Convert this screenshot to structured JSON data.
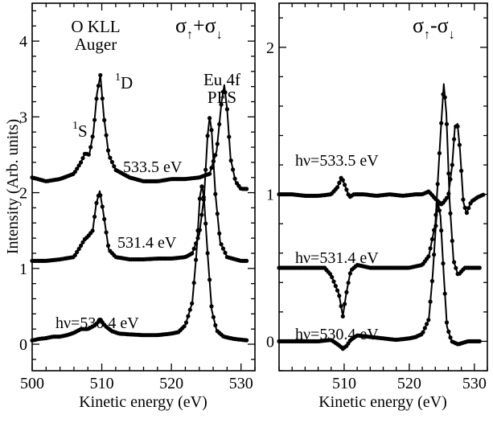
{
  "chart_data": [
    {
      "type": "line",
      "title": "σ↑+σ↓",
      "xlabel": "Kinetic energy (eV)",
      "ylabel": "Intensity (Arb. units)",
      "xlim": [
        500,
        532
      ],
      "ylim": [
        -0.35,
        4.5
      ],
      "xticks": [
        "500",
        "510",
        "520",
        "530"
      ],
      "xtick_values": [
        500,
        510,
        520,
        530
      ],
      "yticks": [
        "0",
        "1",
        "2",
        "3",
        "4"
      ],
      "ytick_values": [
        0,
        1,
        2,
        3,
        4
      ],
      "series": [
        {
          "name": "hν=530.4 eV",
          "label": "hν=530.4 eV",
          "x": [
            500,
            501,
            502,
            503,
            504,
            505,
            506,
            507,
            508,
            509,
            509.8,
            510.5,
            511.5,
            512.5,
            514,
            516,
            518,
            520,
            521,
            522,
            523,
            523.6,
            524.1,
            524.4,
            524.7,
            525.2,
            525.8,
            526.5,
            527.5,
            529,
            531
          ],
          "y": [
            0.05,
            0.07,
            0.08,
            0.1,
            0.1,
            0.12,
            0.15,
            0.2,
            0.2,
            0.25,
            0.32,
            0.24,
            0.17,
            0.14,
            0.13,
            0.12,
            0.12,
            0.14,
            0.16,
            0.25,
            0.55,
            1.2,
            1.95,
            2.1,
            1.9,
            1.2,
            0.45,
            0.18,
            0.1,
            0.07,
            0.05
          ]
        },
        {
          "name": "531.4 eV",
          "label": "531.4 eV",
          "x": [
            500,
            502,
            504,
            506,
            507,
            507.5,
            508,
            508.7,
            509.2,
            509.7,
            510.2,
            511,
            512,
            514,
            516,
            518,
            520,
            522,
            523,
            524,
            524.7,
            525.2,
            525.5,
            525.8,
            526.3,
            527,
            528,
            530,
            531
          ],
          "y": [
            1.1,
            1.1,
            1.12,
            1.15,
            1.3,
            1.38,
            1.42,
            1.5,
            1.85,
            2.02,
            1.75,
            1.25,
            1.15,
            1.12,
            1.12,
            1.13,
            1.13,
            1.15,
            1.2,
            1.45,
            1.95,
            2.75,
            3.0,
            2.8,
            2.0,
            1.35,
            1.15,
            1.1,
            1.1
          ]
        },
        {
          "name": "533.5 eV",
          "label": "533.5 eV",
          "x": [
            500,
            502,
            504,
            506,
            507,
            507.6,
            508.2,
            508.8,
            509.3,
            509.8,
            510.3,
            511,
            512,
            514,
            516,
            518,
            520,
            522,
            524,
            525.5,
            526.5,
            527.2,
            527.6,
            528,
            528.5,
            529.2,
            530,
            531
          ],
          "y": [
            2.2,
            2.15,
            2.18,
            2.25,
            2.4,
            2.52,
            2.5,
            2.8,
            3.3,
            3.55,
            3.0,
            2.5,
            2.3,
            2.2,
            2.15,
            2.15,
            2.18,
            2.18,
            2.2,
            2.25,
            2.55,
            3.2,
            3.42,
            3.1,
            2.45,
            2.15,
            2.05,
            2.05
          ]
        }
      ],
      "annotations": [
        "O KLL",
        "Auger",
        "1",
        "S",
        "1",
        "D",
        "Eu 4f",
        "PES"
      ]
    },
    {
      "type": "line",
      "title": "σ↑-σ↓",
      "xlabel": "Kinetic energy (eV)",
      "ylabel": "",
      "xlim": [
        500,
        532
      ],
      "ylim": [
        -0.2,
        2.3
      ],
      "xticks": [
        "510",
        "520",
        "530"
      ],
      "xtick_values": [
        510,
        520,
        530
      ],
      "yticks": [
        "0",
        "1",
        "2"
      ],
      "ytick_values": [
        0,
        1,
        2
      ],
      "series": [
        {
          "name": "hν=530.4 eV",
          "label": "hν=530.4 eV",
          "x": [
            500,
            502,
            504,
            506,
            508,
            509.3,
            509.8,
            510.4,
            511,
            512,
            514,
            516,
            518,
            520,
            521,
            522,
            523,
            523.6,
            524.1,
            524.4,
            524.8,
            525.3,
            525.8,
            526.5,
            527.5,
            529,
            531
          ],
          "y": [
            0.0,
            0.0,
            0.0,
            0.0,
            0.01,
            -0.03,
            -0.05,
            -0.03,
            0.01,
            0.04,
            0.03,
            0.02,
            0.01,
            0.02,
            0.03,
            0.05,
            0.15,
            0.45,
            0.8,
            0.95,
            0.85,
            0.45,
            0.1,
            0.0,
            -0.02,
            0.0,
            0.0
          ]
        },
        {
          "name": "hν=531.4 eV",
          "label": "hν=531.4 eV",
          "x": [
            500,
            502,
            504,
            506,
            507,
            508,
            509.2,
            509.8,
            510.3,
            511,
            512,
            514,
            516,
            518,
            520,
            522,
            523,
            524,
            524.8,
            525.3,
            525.7,
            526.2,
            526.8,
            527.5,
            528.5,
            530,
            531
          ],
          "y": [
            0.5,
            0.5,
            0.5,
            0.5,
            0.5,
            0.45,
            0.32,
            0.17,
            0.32,
            0.48,
            0.52,
            0.5,
            0.5,
            0.5,
            0.5,
            0.52,
            0.58,
            0.8,
            1.4,
            1.75,
            1.55,
            0.95,
            0.55,
            0.45,
            0.5,
            0.5,
            0.5
          ]
        },
        {
          "name": "hν=533.5 eV",
          "label": "hν=533.5 eV",
          "x": [
            500,
            502,
            504,
            506,
            508,
            509,
            509.6,
            510.2,
            510.8,
            511.5,
            513,
            515,
            517,
            519,
            521,
            522,
            523,
            524,
            525,
            526,
            526.6,
            527,
            527.4,
            527.8,
            528.3,
            528.8,
            529.5,
            530.5,
            531.5
          ],
          "y": [
            1.0,
            1.0,
            0.99,
            0.99,
            1.0,
            1.05,
            1.12,
            1.05,
            0.98,
            1.0,
            1.0,
            0.99,
            1.0,
            0.99,
            1.0,
            1.0,
            1.02,
            0.97,
            0.93,
            0.99,
            1.2,
            1.45,
            1.48,
            1.3,
            0.95,
            0.87,
            0.95,
            0.98,
            1.0
          ]
        }
      ]
    }
  ],
  "text": {
    "left_title_base": "σ",
    "left_title_sub1": "↑",
    "left_title_mid": "+σ",
    "left_title_sub2": "↓",
    "right_title_base": "σ",
    "right_title_sub1": "↑",
    "right_title_mid": "-σ",
    "right_title_sub2": "↓",
    "okll": "O KLL",
    "auger": "Auger",
    "s_sup": "1",
    "s_letter": "S",
    "d_sup": "1",
    "d_letter": "D",
    "eu4f": "Eu 4f",
    "pes": "PES"
  }
}
